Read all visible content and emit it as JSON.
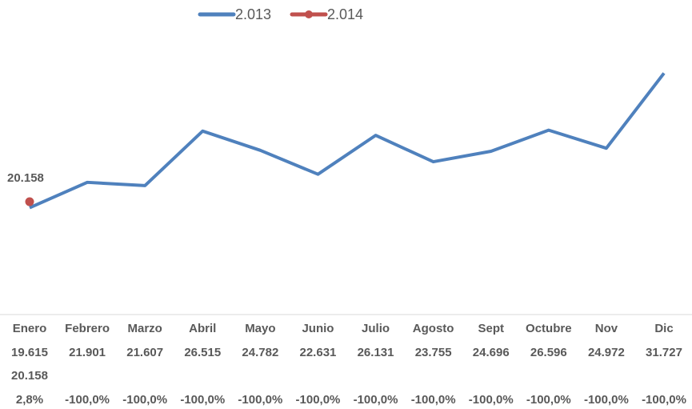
{
  "chart_data": {
    "type": "line",
    "categories": [
      "Enero",
      "Febrero",
      "Marzo",
      "Abril",
      "Mayo",
      "Junio",
      "Julio",
      "Agosto",
      "Sept",
      "Octubre",
      "Nov",
      "Dic"
    ],
    "series": [
      {
        "name": "2.013",
        "color": "#4f81bd",
        "values": [
          19615,
          21901,
          21607,
          26515,
          24782,
          22631,
          26131,
          23755,
          24696,
          26596,
          24972,
          31727
        ],
        "value_labels": [
          "19.615",
          "21.901",
          "21.607",
          "26.515",
          "24.782",
          "22.631",
          "26.131",
          "23.755",
          "24.696",
          "26.596",
          "24.972",
          "31.727"
        ]
      },
      {
        "name": "2.014",
        "color": "#c0504d",
        "values": [
          20158,
          null,
          null,
          null,
          null,
          null,
          null,
          null,
          null,
          null,
          null,
          null
        ],
        "value_labels": [
          "20.158",
          null,
          null,
          null,
          null,
          null,
          null,
          null,
          null,
          null,
          null,
          null
        ]
      }
    ],
    "variation": [
      "2,8%",
      "-100,0%",
      "-100,0%",
      "-100,0%",
      "-100,0%",
      "-100,0%",
      "-100,0%",
      "-100,0%",
      "-100,0%",
      "-100,0%",
      "-100,0%",
      "-100,0%"
    ],
    "ylim": [
      10000,
      35000
    ],
    "legend": "top"
  }
}
